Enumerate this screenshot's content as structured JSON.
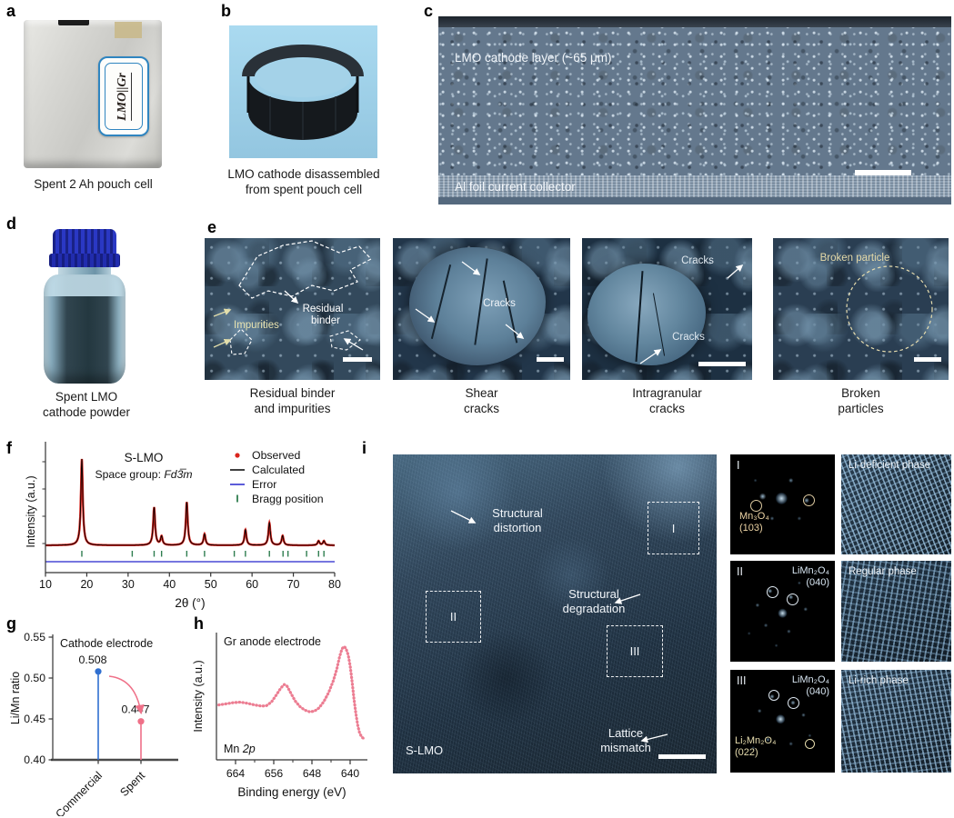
{
  "panels": {
    "a": {
      "letter": "a",
      "cell_label": "LMO||Gr",
      "caption": "Spent 2 Ah pouch cell"
    },
    "b": {
      "letter": "b",
      "caption_line1": "LMO cathode disassembled",
      "caption_line2": "from spent pouch cell"
    },
    "c": {
      "letter": "c",
      "layer_label": "LMO cathode layer (~65 μm)",
      "collector_label": "Al foil current collector"
    },
    "d": {
      "letter": "d",
      "caption_line1": "Spent LMO",
      "caption_line2": "cathode powder"
    },
    "e": {
      "letter": "e",
      "tile1": {
        "impurities_label": "Impurities",
        "binder_label_line1": "Residual",
        "binder_label_line2": "binder",
        "caption_line1": "Residual binder",
        "caption_line2": "and impurities"
      },
      "tile2": {
        "cracks_label": "Cracks",
        "caption_line1": "Shear",
        "caption_line2": "cracks"
      },
      "tile3": {
        "cracks_label_top": "Cracks",
        "cracks_label_mid": "Cracks",
        "caption_line1": "Intragranular",
        "caption_line2": "cracks"
      },
      "tile4": {
        "annotation": "Broken particle",
        "caption_line1": "Broken",
        "caption_line2": "particles"
      }
    },
    "f": {
      "letter": "f"
    },
    "g": {
      "letter": "g"
    },
    "h": {
      "letter": "h"
    },
    "i": {
      "letter": "i",
      "sample_label": "S-LMO",
      "distortion_label": "Structural distortion",
      "degradation_label": "Structural degradation",
      "mismatch_label": "Lattice mismatch",
      "regions": [
        "I",
        "II",
        "III"
      ],
      "fft": [
        {
          "id": "I",
          "phase": "Mn₃O₄",
          "plane": "(103)"
        },
        {
          "id": "II",
          "phase": "LiMn₂O₄",
          "plane": "(040)"
        },
        {
          "id": "III",
          "phase": "LiMn₂O₄",
          "plane": "(040)",
          "phase2": "Li₂Mn₂O₄",
          "plane2": "(022)"
        }
      ],
      "lattice": [
        {
          "label": "Li-deficient phase"
        },
        {
          "label": "Regular phase"
        },
        {
          "label": "Li-rich phase"
        }
      ]
    }
  },
  "chart_data": [
    {
      "panel": "f",
      "type": "line",
      "title": "S-LMO",
      "subtitle_prefix": "Space group: ",
      "subtitle_italic": "Fd3̅m",
      "xlabel": "2θ (°)",
      "ylabel": "Intensity (a.u.)",
      "xlim": [
        10,
        80
      ],
      "xticks": [
        10,
        20,
        30,
        40,
        50,
        60,
        70,
        80
      ],
      "legend": [
        "Observed",
        "Calculated",
        "Error",
        "Bragg position"
      ],
      "legend_colors": [
        "#da251d",
        "#000000",
        "#2525cc",
        "#2e7d4f"
      ],
      "peak_width": 0.28,
      "peaks": [
        {
          "c": 18.8,
          "h": 1.0
        },
        {
          "c": 36.3,
          "h": 0.44
        },
        {
          "c": 38.1,
          "h": 0.1
        },
        {
          "c": 44.2,
          "h": 0.5
        },
        {
          "c": 48.5,
          "h": 0.13
        },
        {
          "c": 58.4,
          "h": 0.18
        },
        {
          "c": 64.2,
          "h": 0.26
        },
        {
          "c": 67.4,
          "h": 0.11
        },
        {
          "c": 76.1,
          "h": 0.05
        },
        {
          "c": 77.4,
          "h": 0.05
        }
      ],
      "bragg_positions": [
        18.8,
        31.0,
        36.3,
        38.1,
        44.2,
        48.5,
        55.7,
        58.4,
        64.2,
        67.5,
        68.7,
        73.2,
        76.1,
        77.4
      ]
    },
    {
      "panel": "g",
      "type": "lollipop",
      "annotation": "Cathode electrode",
      "ylabel": "Li/Mn ratio",
      "categories": [
        "Commercial",
        "Spent"
      ],
      "values": [
        0.508,
        0.447
      ],
      "value_labels": [
        "0.508",
        "0.447"
      ],
      "colors": [
        "#2f6fd0",
        "#ef7088"
      ],
      "ylim": [
        0.4,
        0.55
      ],
      "yticks": [
        "0.55",
        "0.50",
        "0.45",
        "0.40"
      ],
      "ytick_values": [
        0.55,
        0.5,
        0.45,
        0.4
      ]
    },
    {
      "panel": "h",
      "type": "line",
      "annotation": "Gr anode electrode",
      "series_label_prefix": "Mn ",
      "series_label_italic": "2p",
      "xlabel": "Binding energy (eV)",
      "ylabel": "Intensity (a.u.)",
      "xlim": [
        668,
        636
      ],
      "xticks": [
        664,
        656,
        648,
        640
      ],
      "xticks_minor": [
        668,
        660,
        652,
        644
      ],
      "color": "#ec7d92",
      "points": [
        [
          667.5,
          0.435
        ],
        [
          666,
          0.445
        ],
        [
          664.5,
          0.455
        ],
        [
          663,
          0.46
        ],
        [
          661.5,
          0.45
        ],
        [
          660,
          0.435
        ],
        [
          658.5,
          0.425
        ],
        [
          657.5,
          0.43
        ],
        [
          656.5,
          0.46
        ],
        [
          655.5,
          0.52
        ],
        [
          654.5,
          0.585
        ],
        [
          653.8,
          0.615
        ],
        [
          653.2,
          0.6
        ],
        [
          652.5,
          0.545
        ],
        [
          651.5,
          0.47
        ],
        [
          650.5,
          0.42
        ],
        [
          649.5,
          0.39
        ],
        [
          648.5,
          0.375
        ],
        [
          647.5,
          0.38
        ],
        [
          646.5,
          0.41
        ],
        [
          645.5,
          0.465
        ],
        [
          644.5,
          0.545
        ],
        [
          643.5,
          0.65
        ],
        [
          642.8,
          0.75
        ],
        [
          642.2,
          0.86
        ],
        [
          641.7,
          0.93
        ],
        [
          641.3,
          0.95
        ],
        [
          640.9,
          0.935
        ],
        [
          640.4,
          0.875
        ],
        [
          640,
          0.78
        ],
        [
          639.6,
          0.645
        ],
        [
          639.2,
          0.49
        ],
        [
          638.8,
          0.36
        ],
        [
          638.4,
          0.255
        ],
        [
          638,
          0.185
        ],
        [
          637.5,
          0.15
        ],
        [
          637,
          0.135
        ]
      ]
    }
  ]
}
